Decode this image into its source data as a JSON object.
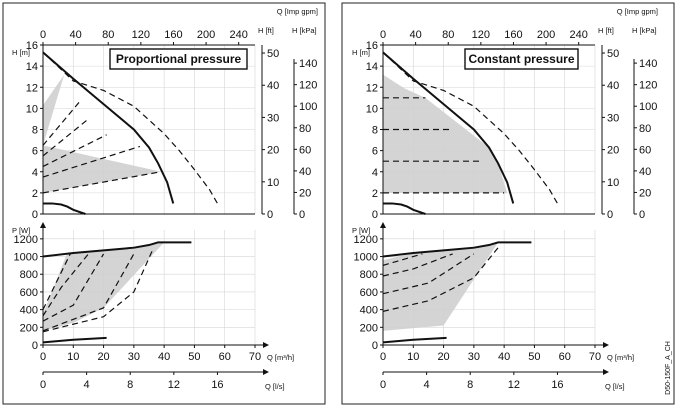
{
  "figure_id": "D50-150F_A_CH",
  "chart_data": [
    {
      "type": "line",
      "title": "Proportional pressure",
      "upper": {
        "ylabel_left": "H [m]",
        "ylabel_ft": "H [ft]",
        "ylabel_kpa": "H [kPa]",
        "xlabel_top": "Q [Imp gpm]",
        "ylim": [
          0,
          16
        ],
        "xlim": [
          0,
          70
        ],
        "yticks": [
          "0",
          "2",
          "4",
          "6",
          "8",
          "10",
          "12",
          "14",
          "16"
        ],
        "top_ticks": [
          "0",
          "40",
          "80",
          "120",
          "160",
          "200",
          "240"
        ],
        "ft_ticks": [
          "0",
          "10",
          "20",
          "30",
          "40",
          "50"
        ],
        "kpa_ticks": [
          "0",
          "20",
          "40",
          "60",
          "80",
          "100",
          "120",
          "140"
        ],
        "series": [
          {
            "style": "solid",
            "x": [
              0,
              10,
              20,
              30,
              35,
              38,
              41,
              43
            ],
            "y": [
              15.3,
              12.8,
              10.4,
              8.0,
              6.3,
              4.8,
              3.0,
              1.0
            ]
          },
          {
            "style": "dashed",
            "x": [
              0,
              10,
              20,
              30,
              40,
              45,
              50,
              55,
              58
            ],
            "y": [
              15.3,
              12.6,
              11.7,
              10.2,
              7.6,
              6.0,
              4.2,
              2.3,
              0.8
            ]
          },
          {
            "style": "solid",
            "x": [
              0,
              3,
              6,
              8,
              10,
              14
            ],
            "y": [
              1.0,
              1.0,
              0.9,
              0.7,
              0.4,
              0.0
            ]
          },
          {
            "style": "dashed",
            "x": [
              0,
              12
            ],
            "y": [
              6.5,
              10.6
            ]
          },
          {
            "style": "dashed",
            "x": [
              0,
              15
            ],
            "y": [
              5.5,
              9.0
            ]
          },
          {
            "style": "dashed",
            "x": [
              0,
              21
            ],
            "y": [
              4.5,
              7.5
            ]
          },
          {
            "style": "dashed",
            "x": [
              0,
              32
            ],
            "y": [
              3.5,
              6.4
            ]
          },
          {
            "style": "dashed",
            "x": [
              0,
              39
            ],
            "y": [
              2.0,
              4.0
            ]
          }
        ],
        "region": {
          "x": [
            0,
            7,
            0,
            39,
            0
          ],
          "y": [
            10.3,
            13.2,
            6.5,
            4.0,
            2.0
          ]
        }
      },
      "lower": {
        "ylabel": "P [W]",
        "xlabel": "Q [m³/h]",
        "xlabel_ls": "Q [l/s]",
        "ylim": [
          0,
          1300
        ],
        "xlim": [
          0,
          70
        ],
        "yticks": [
          "0",
          "200",
          "400",
          "600",
          "800",
          "1000",
          "1200"
        ],
        "xticks": [
          "0",
          "10",
          "20",
          "30",
          "40",
          "50",
          "60",
          "70"
        ],
        "ls_ticks": [
          "0",
          "4",
          "8",
          "12",
          "16"
        ],
        "series": [
          {
            "style": "solid",
            "x": [
              0,
              10,
              20,
              30,
              35,
              38,
              41,
              49
            ],
            "y": [
              1000,
              1040,
              1070,
              1100,
              1130,
              1160,
              1160,
              1160
            ]
          },
          {
            "style": "dashed",
            "x": [
              0,
              9
            ],
            "y": [
              400,
              1030
            ]
          },
          {
            "style": "dashed",
            "x": [
              0,
              6,
              15
            ],
            "y": [
              330,
              650,
              1030
            ]
          },
          {
            "style": "dashed",
            "x": [
              0,
              10,
              20
            ],
            "y": [
              270,
              450,
              1030
            ]
          },
          {
            "style": "dashed",
            "x": [
              0,
              20,
              30
            ],
            "y": [
              160,
              420,
              1030
            ]
          },
          {
            "style": "dashed",
            "x": [
              0,
              20,
              30,
              36
            ],
            "y": [
              150,
              320,
              600,
              1060
            ]
          },
          {
            "style": "solid",
            "x": [
              0,
              10,
              21
            ],
            "y": [
              30,
              60,
              80
            ]
          }
        ],
        "region": {
          "x": [
            0,
            8,
            20,
            30,
            36,
            40,
            20,
            10,
            0
          ],
          "y": [
            350,
            1040,
            1070,
            1100,
            1130,
            1160,
            420,
            250,
            160
          ]
        }
      }
    },
    {
      "type": "line",
      "title": "Constant pressure",
      "upper": {
        "ylabel_left": "H [m]",
        "ylabel_ft": "H [ft]",
        "ylabel_kpa": "H [kPa]",
        "xlabel_top": "Q [Imp gpm]",
        "ylim": [
          0,
          16
        ],
        "xlim": [
          0,
          70
        ],
        "yticks": [
          "0",
          "2",
          "4",
          "6",
          "8",
          "10",
          "12",
          "14",
          "16"
        ],
        "top_ticks": [
          "0",
          "40",
          "80",
          "120",
          "160",
          "200",
          "240"
        ],
        "ft_ticks": [
          "0",
          "10",
          "20",
          "30",
          "40",
          "50"
        ],
        "kpa_ticks": [
          "0",
          "20",
          "40",
          "60",
          "80",
          "100",
          "120",
          "140"
        ],
        "series": [
          {
            "style": "solid",
            "x": [
              0,
              10,
              20,
              30,
              35,
              38,
              41,
              43
            ],
            "y": [
              15.3,
              12.8,
              10.4,
              8.0,
              6.3,
              4.8,
              3.0,
              1.0
            ]
          },
          {
            "style": "dashed",
            "x": [
              0,
              10,
              20,
              30,
              40,
              45,
              50,
              55,
              58
            ],
            "y": [
              15.3,
              12.6,
              11.7,
              10.2,
              7.6,
              6.0,
              4.2,
              2.3,
              0.8
            ]
          },
          {
            "style": "solid",
            "x": [
              0,
              3,
              6,
              8,
              10,
              14
            ],
            "y": [
              1.0,
              1.0,
              0.9,
              0.7,
              0.4,
              0.0
            ]
          },
          {
            "style": "dashed",
            "x": [
              0,
              14
            ],
            "y": [
              11.0,
              11.0
            ]
          },
          {
            "style": "dashed",
            "x": [
              0,
              23
            ],
            "y": [
              8.0,
              8.0
            ]
          },
          {
            "style": "dashed",
            "x": [
              0,
              32
            ],
            "y": [
              5.0,
              5.0
            ]
          },
          {
            "style": "dashed",
            "x": [
              0,
              40
            ],
            "y": [
              2.0,
              2.0
            ]
          }
        ],
        "region": {
          "x": [
            0,
            7,
            14,
            35,
            38,
            41,
            0
          ],
          "y": [
            13.2,
            11.9,
            11.0,
            6.3,
            4.8,
            2.0,
            2.0
          ]
        }
      },
      "lower": {
        "ylabel": "P [W]",
        "xlabel": "Q [m³/h]",
        "xlabel_ls": "Q [l/s]",
        "ylim": [
          0,
          1300
        ],
        "xlim": [
          0,
          70
        ],
        "yticks": [
          "0",
          "200",
          "400",
          "600",
          "800",
          "1000",
          "1200"
        ],
        "xticks": [
          "0",
          "10",
          "20",
          "30",
          "40",
          "50",
          "60",
          "70"
        ],
        "ls_ticks": [
          "0",
          "4",
          "8",
          "12",
          "16"
        ],
        "series": [
          {
            "style": "solid",
            "x": [
              0,
              10,
              20,
              30,
              35,
              38,
              41,
              49
            ],
            "y": [
              1000,
              1040,
              1070,
              1100,
              1130,
              1160,
              1160,
              1160
            ]
          },
          {
            "style": "dashed",
            "x": [
              0,
              8,
              13
            ],
            "y": [
              900,
              980,
              1030
            ]
          },
          {
            "style": "dashed",
            "x": [
              0,
              10,
              23
            ],
            "y": [
              780,
              860,
              1030
            ]
          },
          {
            "style": "dashed",
            "x": [
              0,
              15,
              30
            ],
            "y": [
              580,
              700,
              1030
            ]
          },
          {
            "style": "dashed",
            "x": [
              0,
              15,
              30,
              38
            ],
            "y": [
              380,
              500,
              760,
              1100
            ]
          },
          {
            "style": "solid",
            "x": [
              0,
              10,
              21
            ],
            "y": [
              30,
              60,
              80
            ]
          }
        ],
        "region": {
          "x": [
            0,
            10,
            20,
            30,
            35,
            38,
            20,
            0
          ],
          "y": [
            960,
            1040,
            1070,
            1100,
            1130,
            1160,
            220,
            160
          ]
        }
      }
    }
  ]
}
